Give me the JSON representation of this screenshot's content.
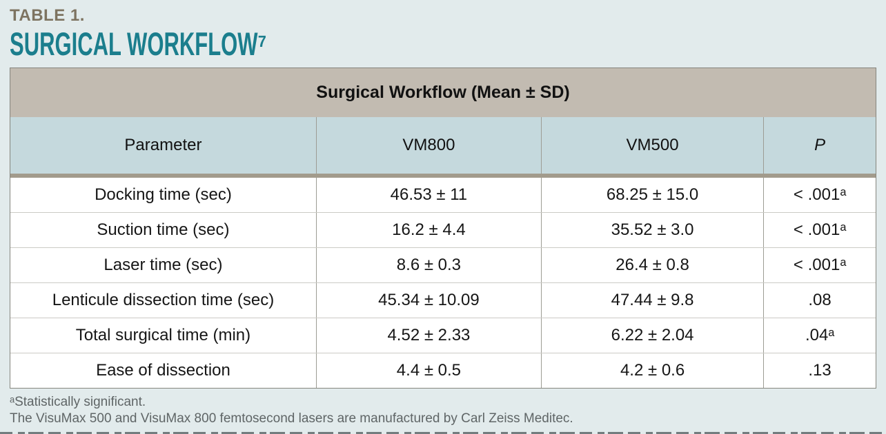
{
  "page": {
    "eyebrow": "TABLE 1.",
    "title": "SURGICAL WORKFLOW⁷"
  },
  "table": {
    "caption": "Surgical Workflow (Mean ± SD)",
    "columns": [
      "Parameter",
      "VM800",
      "VM500",
      "P"
    ],
    "rows": [
      {
        "param": "Docking time (sec)",
        "vm800": "46.53 ± 11",
        "vm500": "68.25 ± 15.0",
        "p": "< .001ᵃ"
      },
      {
        "param": "Suction time (sec)",
        "vm800": "16.2 ± 4.4",
        "vm500": "35.52 ± 3.0",
        "p": "< .001ᵃ"
      },
      {
        "param": "Laser time (sec)",
        "vm800": "8.6 ± 0.3",
        "vm500": "26.4 ± 0.8",
        "p": "< .001ᵃ"
      },
      {
        "param": "Lenticule dissection time (sec)",
        "vm800": "45.34 ± 10.09",
        "vm500": "47.44 ± 9.8",
        "p": ".08"
      },
      {
        "param": "Total surgical time (min)",
        "vm800": "4.52 ± 2.33",
        "vm500": "6.22 ± 2.04",
        "p": ".04ᵃ"
      },
      {
        "param": "Ease of dissection",
        "vm800": "4.4 ± 0.5",
        "vm500": "4.2 ± 0.6",
        "p": ".13"
      }
    ]
  },
  "footnotes": {
    "line1": "ᵃStatistically significant.",
    "line2": "The VisuMax 500 and VisuMax 800 femtosecond lasers are manufactured by Carl Zeiss Meditec."
  },
  "colors": {
    "accent_teal": "#1b7e8d",
    "eyebrow_taupe": "#7d7360",
    "caption_band": "#c2bbb1",
    "header_row_blue": "#c5d9dd",
    "divider_band": "#a29b8c",
    "page_background": "#e2ebec"
  },
  "chart_data": {
    "type": "table",
    "title": "Surgical Workflow (Mean ± SD)",
    "categories": [
      "Docking time (sec)",
      "Suction time (sec)",
      "Laser time (sec)",
      "Lenticule dissection time (sec)",
      "Total surgical time (min)",
      "Ease of dissection"
    ],
    "series": [
      {
        "name": "VM800",
        "values": [
          "46.53 ± 11",
          "16.2 ± 4.4",
          "8.6 ± 0.3",
          "45.34 ± 10.09",
          "4.52 ± 2.33",
          "4.4 ± 0.5"
        ]
      },
      {
        "name": "VM500",
        "values": [
          "68.25 ± 15.0",
          "35.52 ± 3.0",
          "26.4 ± 0.8",
          "47.44 ± 9.8",
          "6.22 ± 2.04",
          "4.2 ± 0.6"
        ]
      },
      {
        "name": "P",
        "values": [
          "< .001ᵃ",
          "< .001ᵃ",
          "< .001ᵃ",
          ".08",
          ".04ᵃ",
          ".13"
        ]
      }
    ]
  }
}
